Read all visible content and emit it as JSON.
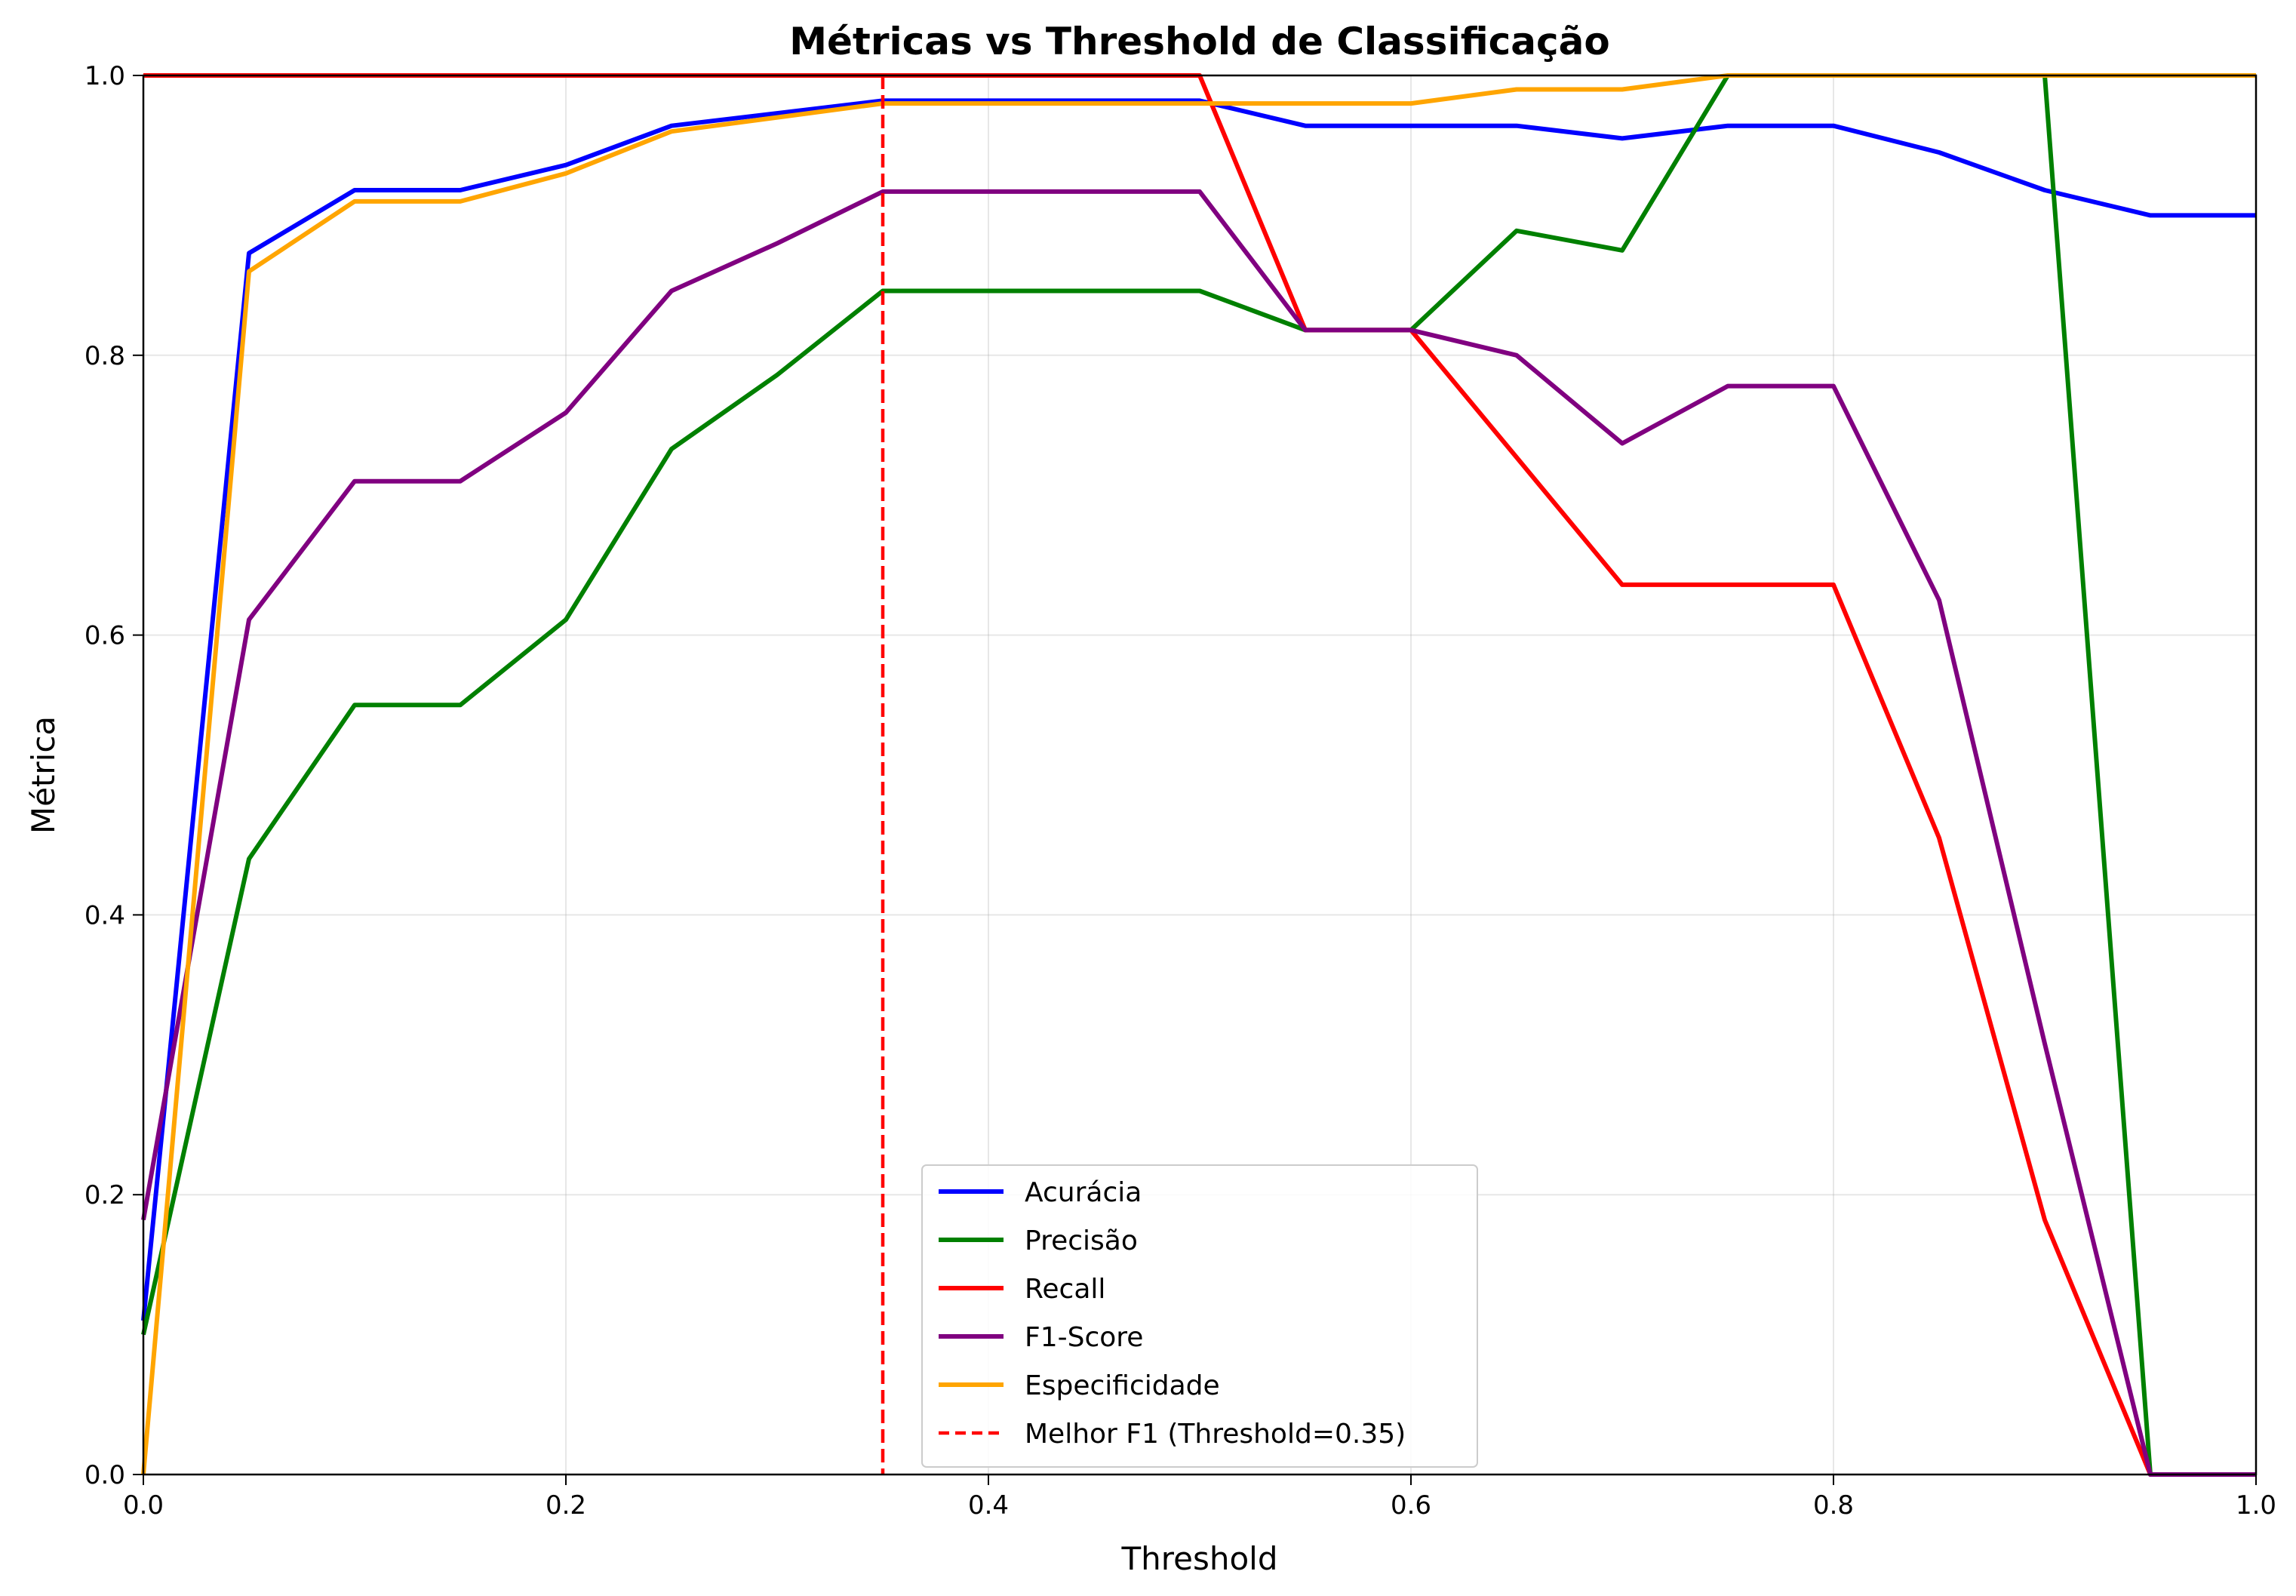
{
  "chart_data": {
    "type": "line",
    "title": "Métricas vs Threshold de Classificação",
    "xlabel": "Threshold",
    "ylabel": "Métrica",
    "xlim": [
      0.0,
      1.0
    ],
    "ylim": [
      0.0,
      1.0
    ],
    "x_ticks": [
      "0.0",
      "0.2",
      "0.4",
      "0.6",
      "0.8",
      "1.0"
    ],
    "y_ticks": [
      "0.0",
      "0.2",
      "0.4",
      "0.6",
      "0.8",
      "1.0"
    ],
    "grid": true,
    "legend_position": "bottom-center",
    "x": [
      0.0,
      0.05,
      0.1,
      0.15,
      0.2,
      0.25,
      0.3,
      0.35,
      0.4,
      0.45,
      0.5,
      0.55,
      0.6,
      0.65,
      0.7,
      0.75,
      0.8,
      0.85,
      0.9,
      0.95,
      1.0
    ],
    "series": [
      {
        "name": "Acurácia",
        "color": "#0000ff",
        "values": [
          0.11,
          0.873,
          0.918,
          0.918,
          0.936,
          0.964,
          0.973,
          0.982,
          0.982,
          0.982,
          0.982,
          0.964,
          0.964,
          0.964,
          0.955,
          0.964,
          0.964,
          0.945,
          0.918,
          0.9,
          0.9
        ]
      },
      {
        "name": "Precisão",
        "color": "#008000",
        "values": [
          0.1,
          0.44,
          0.55,
          0.55,
          0.611,
          0.733,
          0.786,
          0.846,
          0.846,
          0.846,
          0.846,
          0.818,
          0.818,
          0.889,
          0.875,
          1.0,
          1.0,
          1.0,
          1.0,
          0.0,
          0.0
        ]
      },
      {
        "name": "Recall",
        "color": "#ff0000",
        "values": [
          1.0,
          1.0,
          1.0,
          1.0,
          1.0,
          1.0,
          1.0,
          1.0,
          1.0,
          1.0,
          1.0,
          0.818,
          0.818,
          0.727,
          0.636,
          0.636,
          0.636,
          0.455,
          0.182,
          0.0,
          0.0
        ]
      },
      {
        "name": "F1-Score",
        "color": "#800080",
        "values": [
          0.182,
          0.611,
          0.71,
          0.71,
          0.759,
          0.846,
          0.88,
          0.917,
          0.917,
          0.917,
          0.917,
          0.818,
          0.818,
          0.8,
          0.737,
          0.778,
          0.778,
          0.625,
          0.308,
          0.0,
          0.0
        ]
      },
      {
        "name": "Especificidade",
        "color": "#ffa500",
        "values": [
          0.0,
          0.86,
          0.91,
          0.91,
          0.93,
          0.96,
          0.97,
          0.98,
          0.98,
          0.98,
          0.98,
          0.98,
          0.98,
          0.99,
          0.99,
          1.0,
          1.0,
          1.0,
          1.0,
          1.0,
          1.0
        ]
      }
    ],
    "best_threshold": {
      "label": "Melhor F1 (Threshold=0.35)",
      "x": 0.35,
      "color": "#ff0000",
      "style": "dashed"
    }
  }
}
